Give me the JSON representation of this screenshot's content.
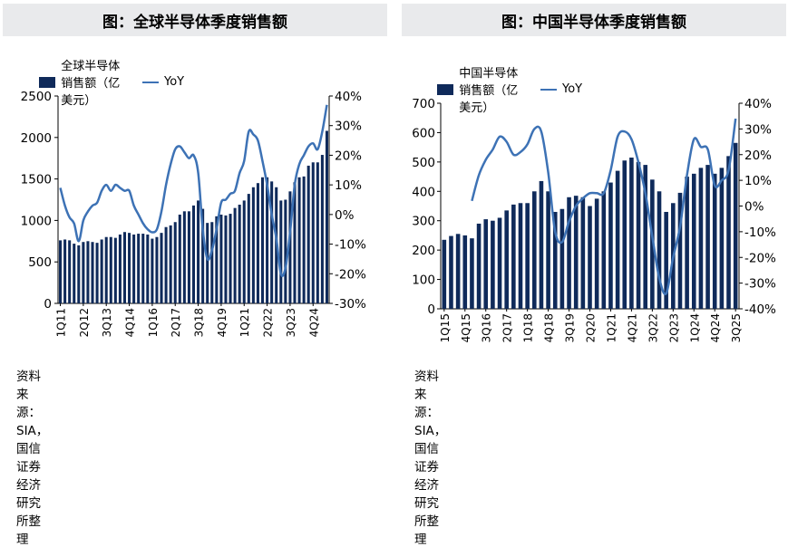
{
  "chart_data": [
    {
      "type": "bar",
      "title": "图：全球半导体季度销售额",
      "legend": {
        "bar_label": "全球半导体销售额（亿美元）",
        "line_label": "YoY"
      },
      "source": "资料来源：SIA，国信证券经济研究所整理",
      "y_left": {
        "min": 0,
        "max": 2500,
        "ticks": [
          0,
          500,
          1000,
          1500,
          2000,
          2500
        ]
      },
      "y_right": {
        "min": -30,
        "max": 40,
        "ticks": [
          "-30%",
          "-20%",
          "-10%",
          "0%",
          "10%",
          "20%",
          "30%",
          "40%"
        ]
      },
      "x_tick_labels": [
        "1Q11",
        "2Q12",
        "3Q13",
        "4Q14",
        "1Q16",
        "2Q17",
        "3Q18",
        "4Q19",
        "1Q21",
        "2Q22",
        "3Q23",
        "4Q24"
      ],
      "categories": [
        "1Q11",
        "2Q11",
        "3Q11",
        "4Q11",
        "1Q12",
        "2Q12",
        "3Q12",
        "4Q12",
        "1Q13",
        "2Q13",
        "3Q13",
        "4Q13",
        "1Q14",
        "2Q14",
        "3Q14",
        "4Q14",
        "1Q15",
        "2Q15",
        "3Q15",
        "4Q15",
        "1Q16",
        "2Q16",
        "3Q16",
        "4Q16",
        "1Q17",
        "2Q17",
        "3Q17",
        "4Q17",
        "1Q18",
        "2Q18",
        "3Q18",
        "4Q18",
        "1Q19",
        "2Q19",
        "3Q19",
        "4Q19",
        "1Q20",
        "2Q20",
        "3Q20",
        "4Q20",
        "1Q21",
        "2Q21",
        "3Q21",
        "4Q21",
        "1Q22",
        "2Q22",
        "3Q22",
        "4Q22",
        "1Q23",
        "2Q23",
        "3Q23",
        "4Q23",
        "1Q24",
        "2Q24",
        "3Q24",
        "4Q24",
        "1Q25",
        "2Q25",
        "3Q25"
      ],
      "series": [
        {
          "name": "全球半导体销售额（亿美元）",
          "kind": "bar",
          "values": [
            760,
            770,
            760,
            720,
            700,
            740,
            750,
            740,
            730,
            770,
            800,
            800,
            790,
            830,
            860,
            850,
            830,
            840,
            840,
            830,
            780,
            800,
            850,
            920,
            940,
            980,
            1070,
            1110,
            1110,
            1180,
            1240,
            1140,
            970,
            980,
            1050,
            1070,
            1060,
            1080,
            1150,
            1190,
            1240,
            1320,
            1400,
            1450,
            1520,
            1520,
            1470,
            1400,
            1240,
            1250,
            1350,
            1460,
            1520,
            1530,
            1660,
            1700,
            1700,
            1790,
            2080
          ]
        },
        {
          "name": "YoY",
          "kind": "line",
          "values": [
            9,
            3,
            -1,
            -3,
            -9,
            -2,
            1,
            3,
            4,
            8,
            10,
            8,
            10,
            9,
            8,
            8,
            3,
            0,
            -3,
            -5,
            -6,
            -5,
            1,
            10,
            17,
            22,
            23,
            21,
            19,
            20,
            14,
            -5,
            -15,
            -12,
            -5,
            4,
            5,
            7,
            8,
            14,
            18,
            28,
            27,
            25,
            18,
            10,
            0,
            -8,
            -20,
            -18,
            -6,
            10,
            17,
            20,
            23,
            24,
            22,
            28,
            37
          ]
        }
      ]
    },
    {
      "type": "bar",
      "title": "图：中国半导体季度销售额",
      "legend": {
        "bar_label": "中国半导体销售额（亿美元）",
        "line_label": "YoY"
      },
      "source": "资料来源：SIA，国信证券经济研究所整理",
      "y_left": {
        "min": 0,
        "max": 700,
        "ticks": [
          0,
          100,
          200,
          300,
          400,
          500,
          600,
          700
        ]
      },
      "y_right": {
        "min": -40,
        "max": 40,
        "ticks": [
          "-40%",
          "-30%",
          "-20%",
          "-10%",
          "0%",
          "10%",
          "20%",
          "30%",
          "40%"
        ]
      },
      "x_tick_labels": [
        "1Q15",
        "4Q15",
        "3Q16",
        "2Q17",
        "1Q18",
        "4Q18",
        "3Q19",
        "2Q20",
        "1Q21",
        "4Q21",
        "3Q22",
        "2Q23",
        "1Q24",
        "4Q24",
        "3Q25"
      ],
      "categories": [
        "1Q15",
        "2Q15",
        "3Q15",
        "4Q15",
        "1Q16",
        "2Q16",
        "3Q16",
        "4Q16",
        "1Q17",
        "2Q17",
        "3Q17",
        "4Q17",
        "1Q18",
        "2Q18",
        "3Q18",
        "4Q18",
        "1Q19",
        "2Q19",
        "3Q19",
        "4Q19",
        "1Q20",
        "2Q20",
        "3Q20",
        "4Q20",
        "1Q21",
        "2Q21",
        "3Q21",
        "4Q21",
        "1Q22",
        "2Q22",
        "3Q22",
        "4Q22",
        "1Q23",
        "2Q23",
        "3Q23",
        "4Q23",
        "1Q24",
        "2Q24",
        "3Q24",
        "4Q24",
        "1Q25",
        "2Q25",
        "3Q25"
      ],
      "series": [
        {
          "name": "中国半导体销售额（亿美元）",
          "kind": "bar",
          "values": [
            235,
            248,
            255,
            250,
            240,
            290,
            305,
            300,
            310,
            335,
            355,
            360,
            360,
            400,
            435,
            400,
            330,
            340,
            380,
            385,
            380,
            350,
            375,
            400,
            430,
            470,
            505,
            515,
            500,
            490,
            440,
            400,
            330,
            360,
            395,
            450,
            460,
            480,
            490,
            460,
            480,
            520,
            565
          ]
        },
        {
          "name": "YoY",
          "kind": "line",
          "values": [
            null,
            null,
            null,
            null,
            2,
            12,
            18,
            22,
            27,
            25,
            20,
            21,
            24,
            30,
            29,
            13,
            -10,
            -14,
            -6,
            0,
            3,
            5,
            5,
            5,
            14,
            27,
            29,
            26,
            17,
            5,
            -12,
            -28,
            -34,
            -20,
            -8,
            12,
            26,
            23,
            22,
            8,
            10,
            14,
            34
          ]
        }
      ]
    }
  ]
}
